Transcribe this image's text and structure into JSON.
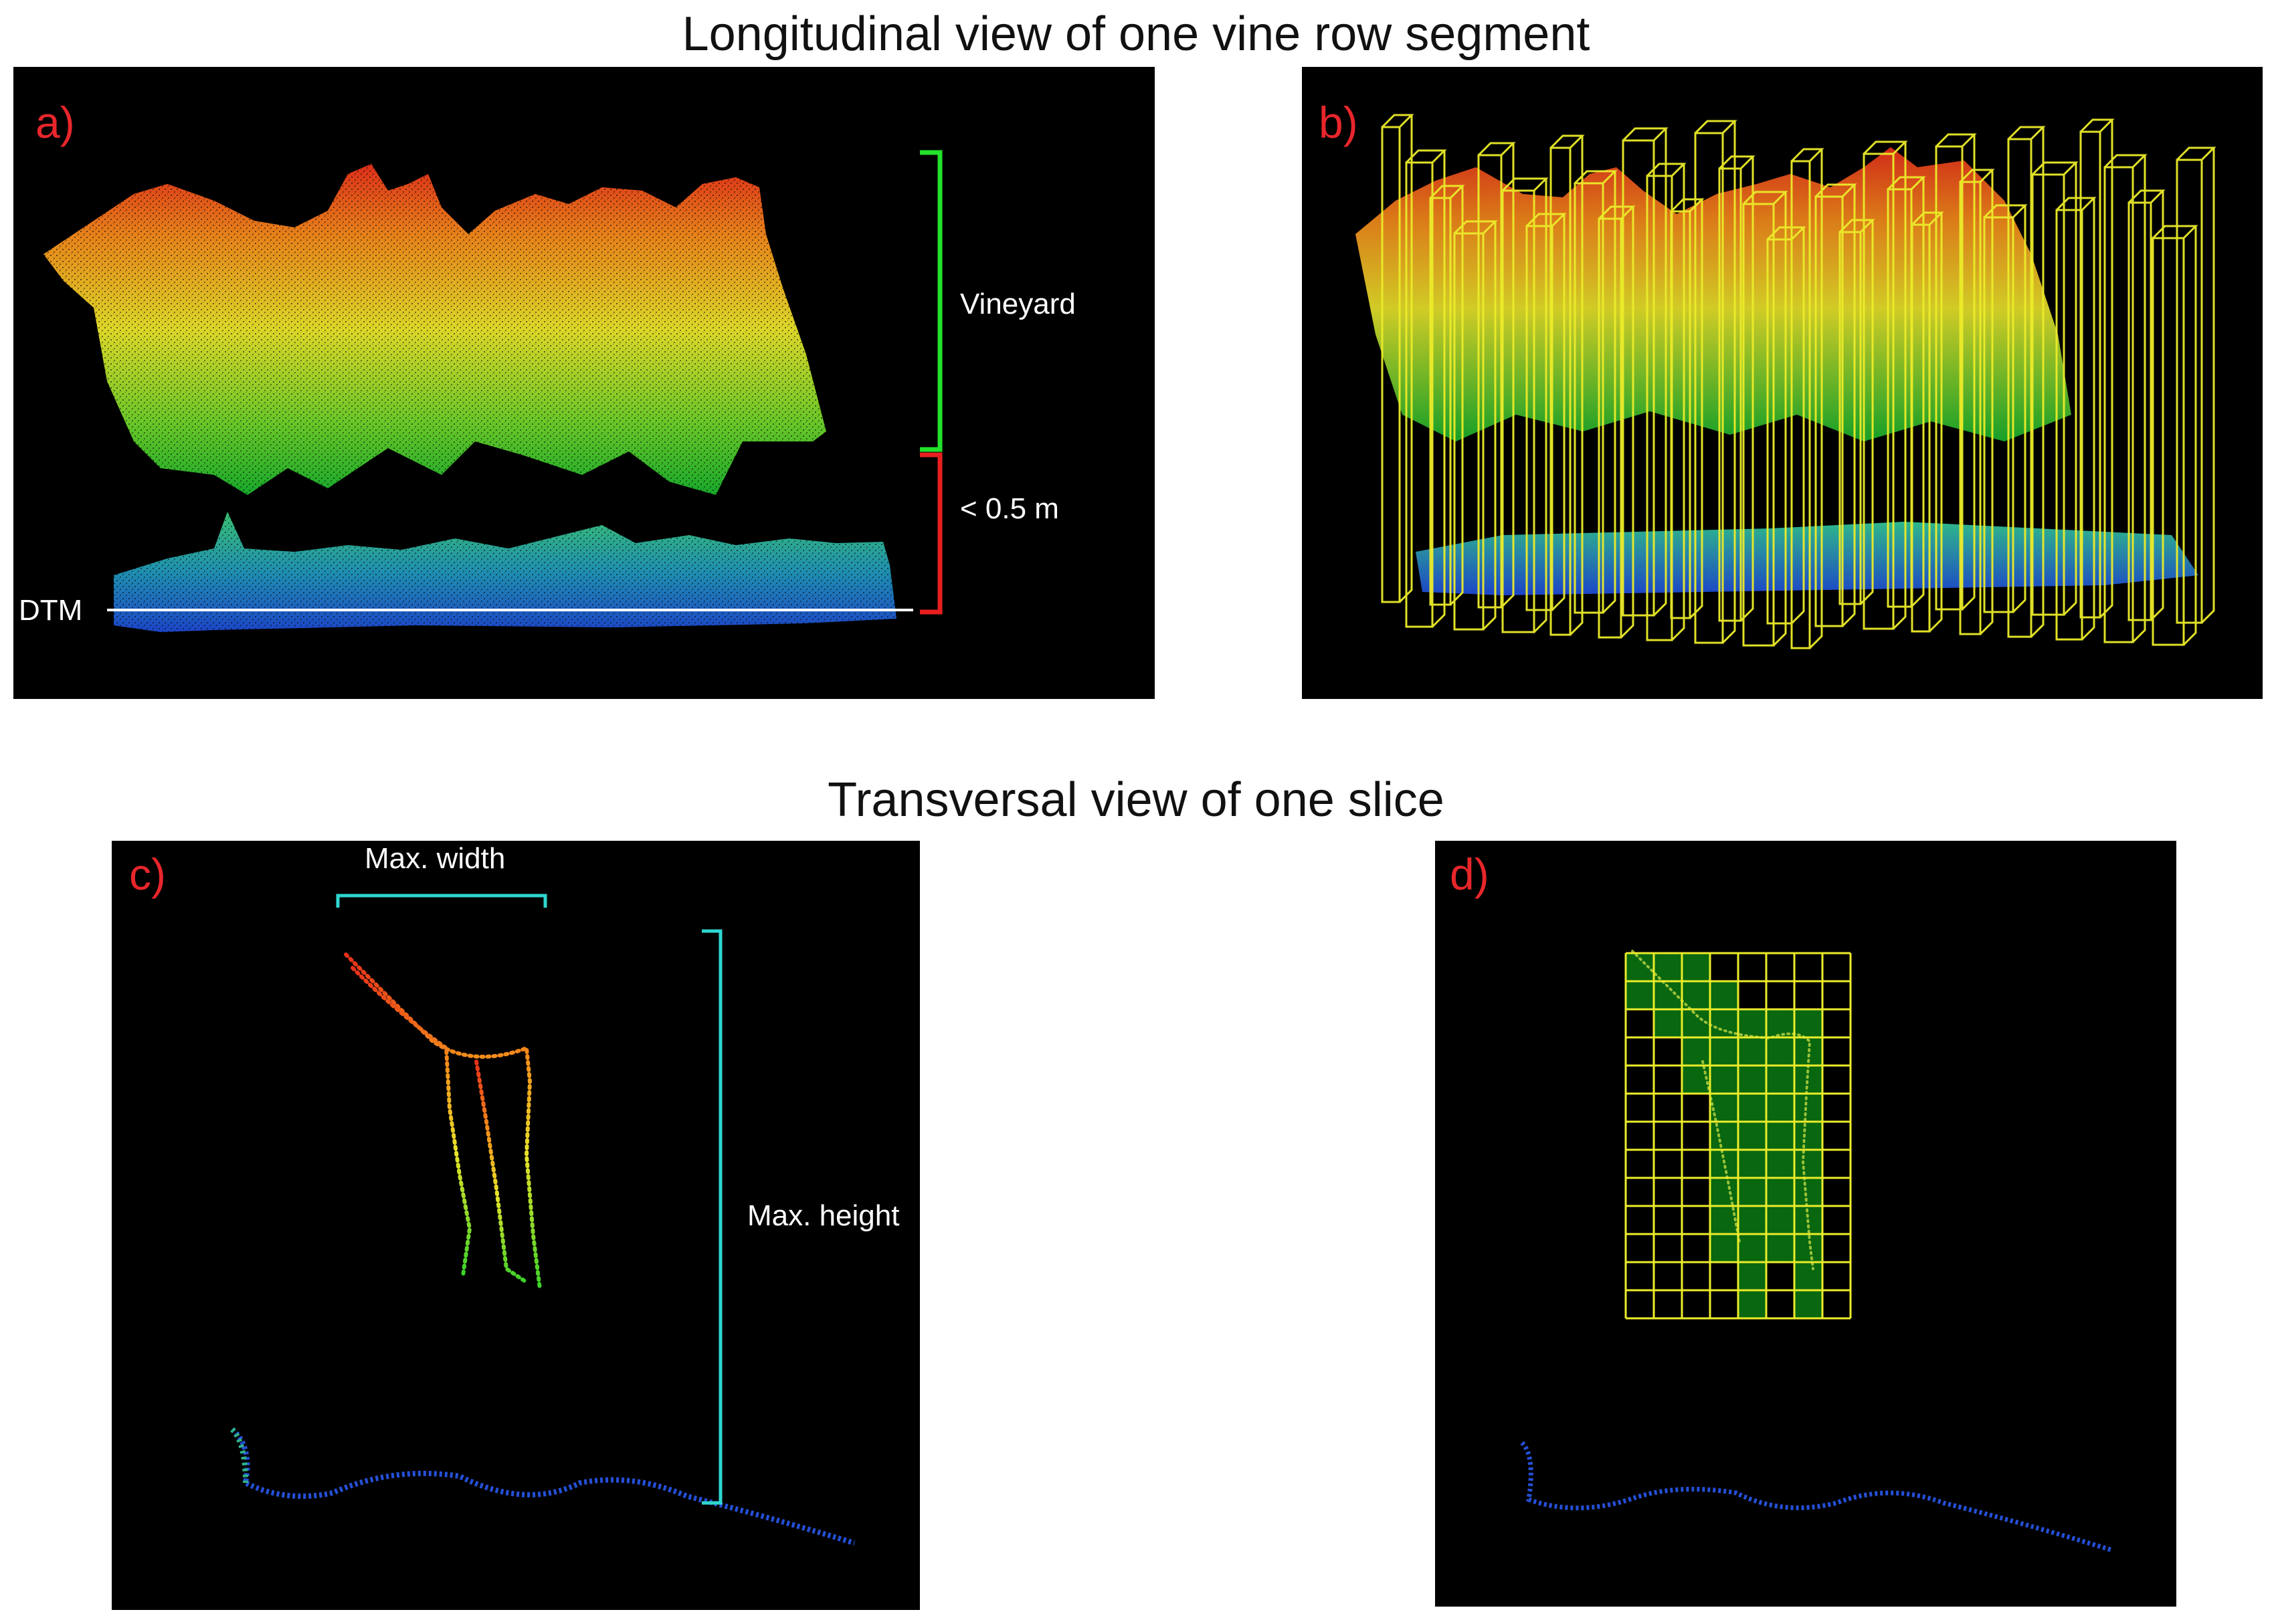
{
  "titles": {
    "top": "Longitudinal view of one vine row segment",
    "bottom": "Transversal view of one slice"
  },
  "panels": {
    "a": {
      "label": "a)",
      "vineyard": "Vineyard",
      "threshold": "< 0.5 m",
      "dtm": "DTM"
    },
    "b": {
      "label": "b)"
    },
    "c": {
      "label": "c)",
      "max_width": "Max. width",
      "max_height": "Max. height"
    },
    "d": {
      "label": "d)"
    }
  },
  "colors": {
    "panel_bg": "#000000",
    "label_red": "#e8262b",
    "bracket_green": "#22e12b",
    "bracket_red": "#e81f1f",
    "bracket_cyan": "#2fd6d0",
    "voxel_yellow": "#ecec2a",
    "occupied_green": "#0a7a12"
  },
  "icons": [
    "point-cloud",
    "voxel-grid",
    "bracket"
  ]
}
